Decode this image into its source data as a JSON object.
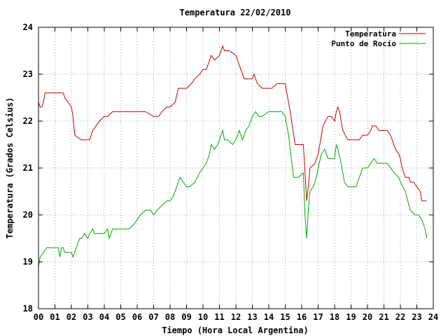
{
  "chart_data": {
    "type": "line",
    "title": "Temperatura 22/02/2010",
    "xlabel": "Tiempo (Hora Local Argentina)",
    "ylabel": "Temperatura (Grados Celsius)",
    "xlim": [
      0,
      24
    ],
    "ylim": [
      18,
      24
    ],
    "x_ticks": [
      0,
      1,
      2,
      3,
      4,
      5,
      6,
      7,
      8,
      9,
      10,
      11,
      12,
      13,
      14,
      15,
      16,
      17,
      18,
      19,
      20,
      21,
      22,
      23,
      24
    ],
    "x_tick_labels": [
      "00",
      "01",
      "02",
      "03",
      "04",
      "05",
      "06",
      "07",
      "08",
      "09",
      "10",
      "11",
      "12",
      "13",
      "14",
      "15",
      "16",
      "17",
      "18",
      "19",
      "20",
      "21",
      "22",
      "23",
      "24"
    ],
    "y_ticks": [
      18,
      19,
      20,
      21,
      22,
      23,
      24
    ],
    "y_tick_labels": [
      "18",
      "19",
      "20",
      "21",
      "22",
      "23",
      "24"
    ],
    "grid": true,
    "legend_position": "top-right",
    "series": [
      {
        "name": "Temperatura",
        "color": "#cc0000",
        "x": [
          0,
          0.1,
          0.2,
          0.3,
          0.4,
          1.5,
          1.6,
          1.8,
          2,
          2.1,
          2.2,
          2.6,
          3.1,
          3.3,
          3.5,
          3.7,
          4,
          4.2,
          4.5,
          5,
          6,
          6.5,
          7,
          7.3,
          7.5,
          7.8,
          8,
          8.3,
          8.5,
          8.8,
          9,
          9.3,
          9.5,
          9.8,
          10,
          10.2,
          10.5,
          10.7,
          11,
          11.2,
          11.3,
          11.6,
          12,
          12.2,
          12.5,
          13,
          13.1,
          13.3,
          13.6,
          14,
          14.2,
          14.5,
          14.8,
          14.9,
          15,
          15.1,
          15.3,
          15.6,
          15.9,
          16.1,
          16.2,
          16.3,
          16.4,
          16.5,
          16.8,
          17,
          17.1,
          17.3,
          17.6,
          17.8,
          18,
          18.1,
          18.2,
          18.3,
          18.5,
          18.8,
          19,
          19.3,
          19.5,
          19.7,
          19.9,
          20,
          20.2,
          20.3,
          20.5,
          20.7,
          21,
          21.2,
          21.4,
          21.6,
          21.7,
          21.9,
          22,
          22.1,
          22.3,
          22.5,
          22.6,
          22.8,
          23,
          23.2,
          23.3,
          23.5,
          23.6
        ],
        "y": [
          22.4,
          22.3,
          22.3,
          22.4,
          22.6,
          22.6,
          22.5,
          22.4,
          22.3,
          22.1,
          21.7,
          21.6,
          21.6,
          21.8,
          21.9,
          22.0,
          22.1,
          22.1,
          22.2,
          22.2,
          22.2,
          22.2,
          22.1,
          22.1,
          22.2,
          22.3,
          22.3,
          22.4,
          22.7,
          22.7,
          22.7,
          22.8,
          22.9,
          23.0,
          23.1,
          23.1,
          23.4,
          23.3,
          23.4,
          23.6,
          23.5,
          23.5,
          23.4,
          23.2,
          22.9,
          22.9,
          23.0,
          22.8,
          22.7,
          22.7,
          22.7,
          22.8,
          22.8,
          22.8,
          22.8,
          22.6,
          22.2,
          21.5,
          21.5,
          21.5,
          20.9,
          20.3,
          20.6,
          21.0,
          21.1,
          21.3,
          21.5,
          21.9,
          22.1,
          22.1,
          22.0,
          22.2,
          22.3,
          22.2,
          21.8,
          21.6,
          21.6,
          21.6,
          21.6,
          21.7,
          21.7,
          21.7,
          21.8,
          21.9,
          21.9,
          21.8,
          21.8,
          21.8,
          21.7,
          21.5,
          21.4,
          21.3,
          21.2,
          21.0,
          20.8,
          20.8,
          20.7,
          20.7,
          20.6,
          20.5,
          20.3,
          20.3,
          20.3
        ]
      },
      {
        "name": "Punto de Rocío",
        "color": "#00aa00",
        "x": [
          0,
          0.1,
          0.3,
          0.5,
          0.7,
          1.2,
          1.3,
          1.4,
          1.5,
          1.6,
          2,
          2.1,
          2.3,
          2.5,
          2.6,
          2.8,
          3,
          3.1,
          3.3,
          3.4,
          3.6,
          4,
          4.2,
          4.3,
          4.5,
          5,
          5.5,
          5.8,
          6,
          6.2,
          6.5,
          6.8,
          7,
          7.2,
          7.5,
          7.8,
          8,
          8.2,
          8.4,
          8.6,
          9,
          9.2,
          9.5,
          9.8,
          10,
          10.2,
          10.4,
          10.5,
          10.7,
          10.9,
          11,
          11.2,
          11.3,
          11.5,
          11.8,
          12,
          12.2,
          12.4,
          12.6,
          12.8,
          13,
          13.2,
          13.4,
          13.6,
          14,
          14.5,
          14.8,
          15,
          15.2,
          15.5,
          15.8,
          16.1,
          16.2,
          16.3,
          16.4,
          16.5,
          16.7,
          16.9,
          17,
          17.2,
          17.4,
          17.6,
          17.8,
          18,
          18.1,
          18.2,
          18.4,
          18.6,
          18.8,
          19,
          19.3,
          19.5,
          19.7,
          20,
          20.2,
          20.4,
          20.6,
          20.8,
          21,
          21.2,
          21.4,
          21.6,
          21.9,
          22,
          22.3,
          22.6,
          22.9,
          23.1,
          23.3,
          23.5,
          23.6
        ],
        "y": [
          18.9,
          19.1,
          19.2,
          19.3,
          19.3,
          19.3,
          19.1,
          19.3,
          19.3,
          19.2,
          19.2,
          19.1,
          19.3,
          19.5,
          19.5,
          19.6,
          19.5,
          19.6,
          19.7,
          19.6,
          19.6,
          19.6,
          19.7,
          19.5,
          19.7,
          19.7,
          19.7,
          19.8,
          19.9,
          20.0,
          20.1,
          20.1,
          20.0,
          20.1,
          20.2,
          20.3,
          20.3,
          20.4,
          20.6,
          20.8,
          20.6,
          20.6,
          20.7,
          20.9,
          21.0,
          21.1,
          21.3,
          21.5,
          21.4,
          21.5,
          21.6,
          21.8,
          21.6,
          21.6,
          21.5,
          21.6,
          21.8,
          21.6,
          21.8,
          21.9,
          22.1,
          22.2,
          22.1,
          22.1,
          22.2,
          22.2,
          22.2,
          22.1,
          21.7,
          20.8,
          20.8,
          20.9,
          20.0,
          19.5,
          20.1,
          20.5,
          20.6,
          20.8,
          21.0,
          21.3,
          21.4,
          21.2,
          21.2,
          21.2,
          21.5,
          21.4,
          21.1,
          20.7,
          20.6,
          20.6,
          20.6,
          20.8,
          21.0,
          21.0,
          21.1,
          21.2,
          21.1,
          21.1,
          21.1,
          21.1,
          21.0,
          20.9,
          20.8,
          20.7,
          20.5,
          20.1,
          20.0,
          20.0,
          19.9,
          19.7,
          19.5
        ]
      }
    ]
  }
}
